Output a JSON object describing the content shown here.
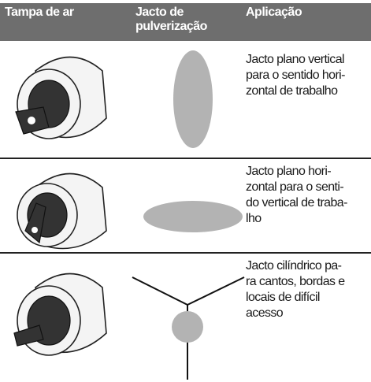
{
  "table": {
    "header": [
      "Tampa de ar",
      [
        "Jacto de",
        "pulverização"
      ],
      "Aplicação"
    ],
    "rows": [
      {
        "application": [
          "Jacto plano vertical",
          "para o sentido hori-",
          "zontal de trabalho"
        ]
      },
      {
        "application": [
          "Jacto plano hori-",
          "zontal para o senti-",
          "do vertical de traba-",
          "lho"
        ]
      },
      {
        "application": [
          "Jacto cilíndrico pa-",
          "ra cantos, bordas e",
          "locais de difícil",
          "acesso"
        ]
      }
    ]
  }
}
